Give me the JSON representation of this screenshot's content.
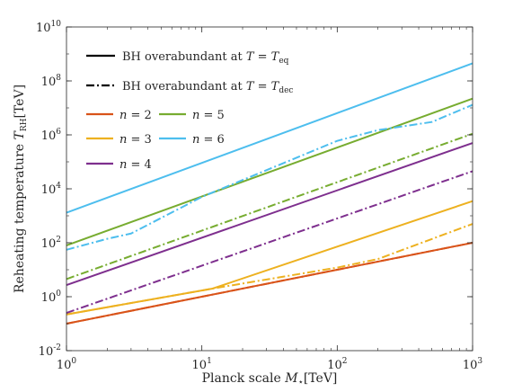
{
  "chart_data": {
    "type": "line",
    "title": "",
    "xlabel": "Planck scale M⋆[TeV]",
    "ylabel": "Reheating temperature T_RH[TeV]",
    "xscale": "log",
    "yscale": "log",
    "xlim": [
      1,
      1000
    ],
    "ylim": [
      0.01,
      10000000000
    ],
    "grid": false,
    "legend_placement": "top-left",
    "x_ticks": [
      {
        "value": 1,
        "base": "10",
        "exp": "0"
      },
      {
        "value": 10,
        "base": "10",
        "exp": "1"
      },
      {
        "value": 100,
        "base": "10",
        "exp": "2"
      },
      {
        "value": 1000,
        "base": "10",
        "exp": "3"
      }
    ],
    "y_ticks": [
      {
        "value": 0.01,
        "base": "10",
        "exp": "-2"
      },
      {
        "value": 1,
        "base": "10",
        "exp": "0"
      },
      {
        "value": 100,
        "base": "10",
        "exp": "2"
      },
      {
        "value": 10000,
        "base": "10",
        "exp": "4"
      },
      {
        "value": 1000000,
        "base": "10",
        "exp": "6"
      },
      {
        "value": 100000000,
        "base": "10",
        "exp": "8"
      },
      {
        "value": 10000000000,
        "base": "10",
        "exp": "10"
      }
    ],
    "legend_styles": [
      {
        "style": "solid",
        "label": "BH overabundant at T = T_eq"
      },
      {
        "style": "dashdot",
        "label": "BH overabundant at T = T_dec"
      }
    ],
    "legend_colors": [
      {
        "label": "n = 2",
        "color": "#d95319"
      },
      {
        "label": "n = 5",
        "color": "#77ac30"
      },
      {
        "label": "n = 3",
        "color": "#edb120"
      },
      {
        "label": "n = 6",
        "color": "#4dbeee"
      },
      {
        "label": "n = 4",
        "color": "#7e2f8e"
      }
    ],
    "series": [
      {
        "n": 2,
        "condition": "T_eq",
        "color": "#d95319",
        "style": "solid",
        "x": [
          1,
          10,
          100,
          1000
        ],
        "y": [
          0.1,
          1,
          10,
          100
        ]
      },
      {
        "n": 2,
        "condition": "T_dec",
        "color": "#d95319",
        "style": "dashdot",
        "x": [
          1,
          10,
          100,
          1000
        ],
        "y": [
          0.1,
          1,
          10,
          100
        ]
      },
      {
        "n": 3,
        "condition": "T_eq",
        "color": "#edb120",
        "style": "solid",
        "x": [
          1,
          12,
          1000
        ],
        "y": [
          0.22,
          2,
          3500
        ]
      },
      {
        "n": 3,
        "condition": "T_dec",
        "color": "#edb120",
        "style": "dashdot",
        "x": [
          1,
          12,
          100,
          200,
          1000
        ],
        "y": [
          0.22,
          2,
          12,
          25,
          500
        ]
      },
      {
        "n": 4,
        "condition": "T_eq",
        "color": "#7e2f8e",
        "style": "solid",
        "x": [
          1,
          1000
        ],
        "y": [
          2.7,
          500000
        ]
      },
      {
        "n": 4,
        "condition": "T_dec",
        "color": "#7e2f8e",
        "style": "dashdot",
        "x": [
          1,
          1000
        ],
        "y": [
          0.25,
          45000
        ]
      },
      {
        "n": 5,
        "condition": "T_eq",
        "color": "#77ac30",
        "style": "solid",
        "x": [
          1,
          1000
        ],
        "y": [
          80,
          22000000
        ]
      },
      {
        "n": 5,
        "condition": "T_dec",
        "color": "#77ac30",
        "style": "dashdot",
        "x": [
          1,
          1000
        ],
        "y": [
          4.5,
          1100000
        ]
      },
      {
        "n": 6,
        "condition": "T_eq",
        "color": "#4dbeee",
        "style": "solid",
        "x": [
          1,
          1000
        ],
        "y": [
          1300,
          450000000
        ]
      },
      {
        "n": 6,
        "condition": "T_dec",
        "color": "#4dbeee",
        "style": "dashdot",
        "x": [
          1,
          2,
          3,
          10,
          100,
          200,
          500,
          1000
        ],
        "y": [
          55,
          140,
          220,
          5000,
          600000,
          1500000,
          3000000,
          13000000
        ]
      }
    ]
  }
}
